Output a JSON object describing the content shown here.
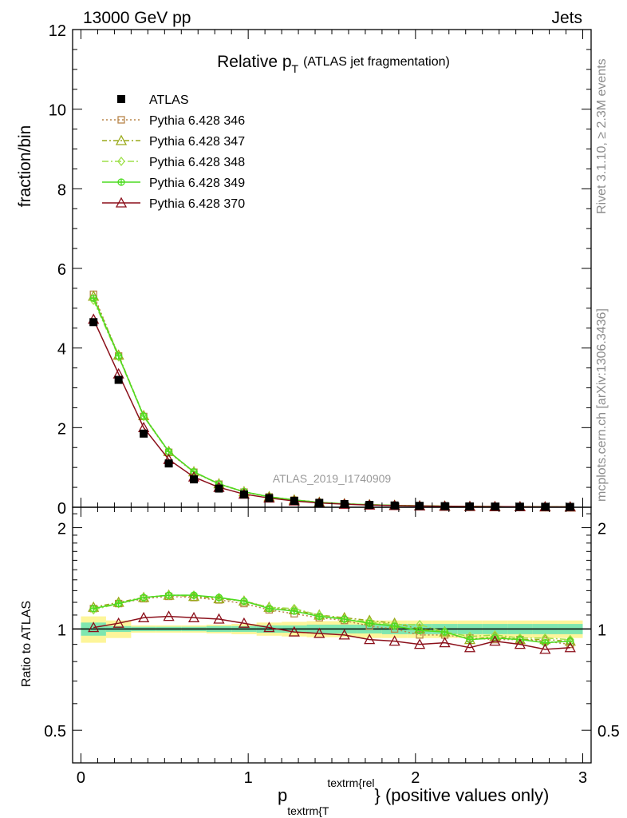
{
  "header": {
    "left": "13000 GeV pp",
    "right": "Jets"
  },
  "side": {
    "top": "Rivet 3.1.10, ≥ 2.3M events",
    "bottom": "mcplots.cern.ch [arXiv:1306.3436]"
  },
  "chart_data": [
    {
      "type": "line",
      "title_main": "Relative p",
      "title_sub": "T",
      "title_rest": "(ATLAS jet fragmentation)",
      "ylabel": "fraction/bin",
      "watermark": "ATLAS_2019_I1740909",
      "xlim": [
        -0.05,
        3.05
      ],
      "ylim": [
        0,
        12
      ],
      "yticks": [
        "0",
        "2",
        "4",
        "6",
        "8",
        "10",
        "12"
      ],
      "x": [
        0.075,
        0.225,
        0.375,
        0.525,
        0.675,
        0.825,
        0.975,
        1.125,
        1.275,
        1.425,
        1.575,
        1.725,
        1.875,
        2.025,
        2.175,
        2.325,
        2.475,
        2.625,
        2.775,
        2.925
      ],
      "series": [
        {
          "name": "ATLAS",
          "style": "data",
          "color": "#000000",
          "marker": "square-filled",
          "values": [
            4.65,
            3.2,
            1.85,
            1.1,
            0.7,
            0.47,
            0.32,
            0.23,
            0.16,
            0.11,
            0.08,
            0.06,
            0.045,
            0.035,
            0.028,
            0.022,
            0.018,
            0.015,
            0.012,
            0.01
          ]
        },
        {
          "name": "Pythia 6.428 346",
          "color": "#b8864a",
          "dash": "2,3",
          "marker": "square",
          "values": [
            5.35,
            3.8,
            2.28,
            1.38,
            0.88,
            0.58,
            0.38,
            0.26,
            0.18,
            0.12,
            0.085,
            0.062,
            0.046,
            0.034,
            0.027,
            0.021,
            0.017,
            0.014,
            0.011,
            0.009
          ]
        },
        {
          "name": "Pythia 6.428 347",
          "color": "#9aaa1a",
          "dash": "6,3,2,3",
          "marker": "triangle",
          "values": [
            5.3,
            3.82,
            2.3,
            1.4,
            0.89,
            0.59,
            0.39,
            0.265,
            0.185,
            0.125,
            0.088,
            0.064,
            0.047,
            0.035,
            0.027,
            0.021,
            0.017,
            0.014,
            0.011,
            0.009
          ]
        },
        {
          "name": "Pythia 6.428 348",
          "color": "#9ee04a",
          "dash": "8,3,2,3",
          "marker": "diamond",
          "values": [
            5.2,
            3.78,
            2.28,
            1.39,
            0.885,
            0.585,
            0.385,
            0.262,
            0.183,
            0.124,
            0.087,
            0.063,
            0.047,
            0.035,
            0.027,
            0.021,
            0.017,
            0.014,
            0.011,
            0.009
          ]
        },
        {
          "name": "Pythia 6.428 349",
          "color": "#4cdc20",
          "dash": "",
          "marker": "circle-plus",
          "values": [
            5.25,
            3.8,
            2.29,
            1.4,
            0.89,
            0.585,
            0.39,
            0.263,
            0.184,
            0.124,
            0.087,
            0.063,
            0.047,
            0.035,
            0.027,
            0.021,
            0.017,
            0.014,
            0.011,
            0.009
          ]
        },
        {
          "name": "Pythia 6.428 370",
          "color": "#8b0f1a",
          "dash": "",
          "marker": "triangle",
          "values": [
            4.72,
            3.35,
            2.0,
            1.2,
            0.76,
            0.5,
            0.33,
            0.232,
            0.158,
            0.107,
            0.077,
            0.056,
            0.042,
            0.032,
            0.025,
            0.02,
            0.016,
            0.013,
            0.011,
            0.009
          ]
        }
      ]
    },
    {
      "type": "line",
      "ylabel": "Ratio to ATLAS",
      "xlabel_main": "p",
      "xlabel_sub": "textrm{T",
      "xlabel_sup": "textrm{rel",
      "xlabel_rest": "} (positive values only)",
      "xlim": [
        -0.05,
        3.05
      ],
      "ylim": [
        0.4,
        2.3
      ],
      "log_y": true,
      "xticks": [
        "0",
        "1",
        "2",
        "3"
      ],
      "yticks": [
        "0.5",
        "1",
        "2"
      ],
      "x": [
        0.075,
        0.225,
        0.375,
        0.525,
        0.675,
        0.825,
        0.975,
        1.125,
        1.275,
        1.425,
        1.575,
        1.725,
        1.875,
        2.025,
        2.175,
        2.325,
        2.475,
        2.625,
        2.775,
        2.925
      ],
      "band_inner": [
        0.045,
        0.02,
        0.015,
        0.015,
        0.015,
        0.02,
        0.02,
        0.025,
        0.025,
        0.03,
        0.03,
        0.03,
        0.035,
        0.035,
        0.035,
        0.035,
        0.035,
        0.035,
        0.035,
        0.035
      ],
      "band_outer": [
        0.09,
        0.06,
        0.025,
        0.025,
        0.025,
        0.03,
        0.035,
        0.045,
        0.05,
        0.055,
        0.055,
        0.06,
        0.06,
        0.06,
        0.06,
        0.06,
        0.06,
        0.06,
        0.06,
        0.06
      ],
      "series": [
        {
          "name": "Pythia 6.428 346",
          "color": "#b8864a",
          "dash": "2,3",
          "marker": "square",
          "values": [
            1.15,
            1.19,
            1.23,
            1.25,
            1.24,
            1.22,
            1.19,
            1.14,
            1.11,
            1.08,
            1.06,
            1.02,
            1.0,
            0.96,
            0.96,
            0.94,
            0.93,
            0.93,
            0.92,
            0.9
          ]
        },
        {
          "name": "Pythia 6.428 347",
          "color": "#9aaa1a",
          "dash": "6,3,2,3",
          "marker": "triangle",
          "values": [
            1.16,
            1.2,
            1.24,
            1.26,
            1.25,
            1.23,
            1.21,
            1.16,
            1.14,
            1.1,
            1.08,
            1.06,
            1.04,
            1.0,
            0.98,
            0.93,
            0.95,
            0.93,
            0.93,
            0.92
          ]
        },
        {
          "name": "Pythia 6.428 348",
          "color": "#9ee04a",
          "dash": "8,3,2,3",
          "marker": "diamond",
          "values": [
            1.14,
            1.19,
            1.24,
            1.26,
            1.26,
            1.24,
            1.21,
            1.16,
            1.15,
            1.1,
            1.07,
            1.05,
            1.03,
            1.03,
            0.98,
            0.95,
            0.96,
            0.94,
            0.94,
            0.93
          ]
        },
        {
          "name": "Pythia 6.428 349",
          "color": "#4cdc20",
          "dash": "",
          "marker": "circle-plus",
          "values": [
            1.15,
            1.19,
            1.24,
            1.26,
            1.26,
            1.24,
            1.21,
            1.15,
            1.13,
            1.09,
            1.07,
            1.04,
            1.02,
            0.99,
            0.98,
            0.93,
            0.94,
            0.93,
            0.91,
            0.92
          ]
        },
        {
          "name": "Pythia 6.428 370",
          "color": "#8b0f1a",
          "dash": "",
          "marker": "triangle",
          "values": [
            1.01,
            1.04,
            1.08,
            1.09,
            1.08,
            1.07,
            1.04,
            1.01,
            0.98,
            0.97,
            0.96,
            0.93,
            0.92,
            0.9,
            0.91,
            0.88,
            0.92,
            0.9,
            0.87,
            0.88
          ]
        }
      ]
    }
  ]
}
